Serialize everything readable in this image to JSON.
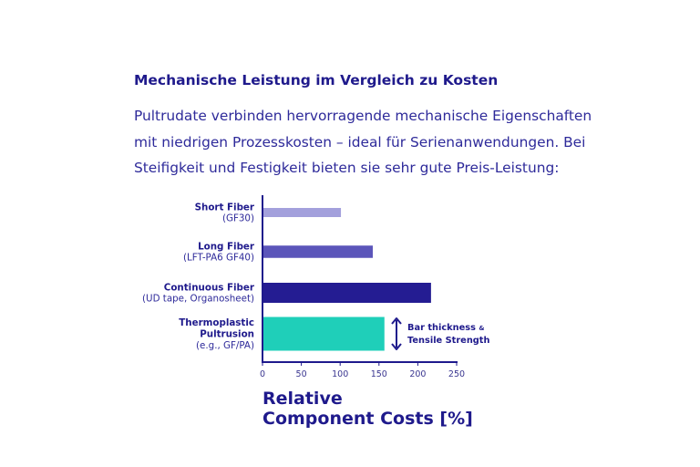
{
  "heading": "Mechanische Leistung im Vergleich zu Kosten",
  "paragraph": [
    "Pultrudate verbinden hervorragende mechanische Eigenschaften",
    "mit niedrigen Prozesskosten – ideal für Serienanwendungen. Bei",
    "Steifigkeit und Festigkeit bieten sie sehr gute Preis-Leistung:"
  ],
  "chart_data": {
    "type": "bar",
    "orientation": "horizontal",
    "categories": [
      {
        "name": "Short Fiber",
        "sub": "(GF30)"
      },
      {
        "name": "Long Fiber",
        "sub": "(LFT-PA6 GF40)"
      },
      {
        "name": "Continuous Fiber",
        "sub": "(UD tape, Organosheet)"
      },
      {
        "name": "Thermoplastic Pultrusion",
        "name_lines": [
          "Thermoplastic",
          "Pultrusion"
        ],
        "sub": "(e.g., GF/PA)"
      }
    ],
    "values": [
      101,
      142,
      217,
      157
    ],
    "bar_thickness_relative": [
      1,
      1.35,
      2.2,
      3.7
    ],
    "colors": [
      "#a3a0dc",
      "#5b55ba",
      "#241c92",
      "#1fcfb9"
    ],
    "xlabel_lines": [
      "Relative",
      "Component Costs [%]"
    ],
    "xlim": [
      0,
      250
    ],
    "xticks": [
      0,
      50,
      100,
      150,
      200,
      250
    ],
    "annotation": {
      "line1": "Bar thickness",
      "amp": "&",
      "line2": "Tensile Strength"
    },
    "axis_color": "#1f1a8c",
    "grid": false
  }
}
